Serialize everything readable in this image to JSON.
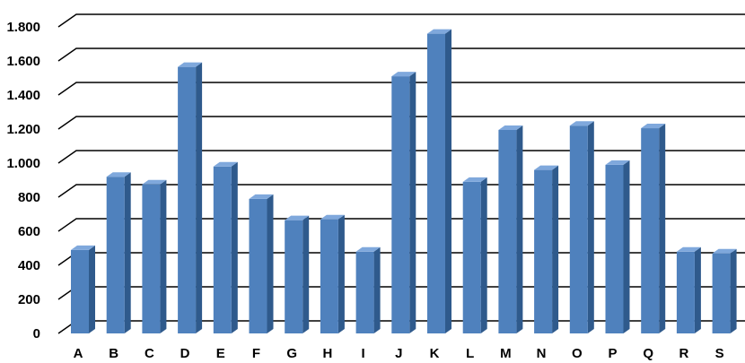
{
  "chart_data": {
    "type": "bar",
    "style": "3d-column",
    "categories": [
      "A",
      "B",
      "C",
      "D",
      "E",
      "F",
      "G",
      "H",
      "I",
      "J",
      "K",
      "L",
      "M",
      "N",
      "O",
      "P",
      "Q",
      "R",
      "S"
    ],
    "values": [
      490,
      920,
      875,
      1565,
      980,
      790,
      665,
      670,
      480,
      1510,
      1760,
      890,
      1195,
      960,
      1220,
      990,
      1205,
      480,
      470
    ],
    "ylim": [
      0,
      1800
    ],
    "yticks": [
      0,
      200,
      400,
      600,
      800,
      1000,
      1200,
      1400,
      1600,
      1800
    ],
    "ytick_labels": [
      "0",
      "200",
      "400",
      "600",
      "800",
      "1.000",
      "1.200",
      "1.400",
      "1.600",
      "1.800"
    ],
    "grid": true,
    "legend": "none",
    "title": "",
    "xlabel": "",
    "ylabel": "",
    "colors": {
      "bar_front": "#4f81bd",
      "bar_side": "#2f5a8c",
      "bar_top": "#7fa8dc",
      "grid": "#000000"
    }
  }
}
